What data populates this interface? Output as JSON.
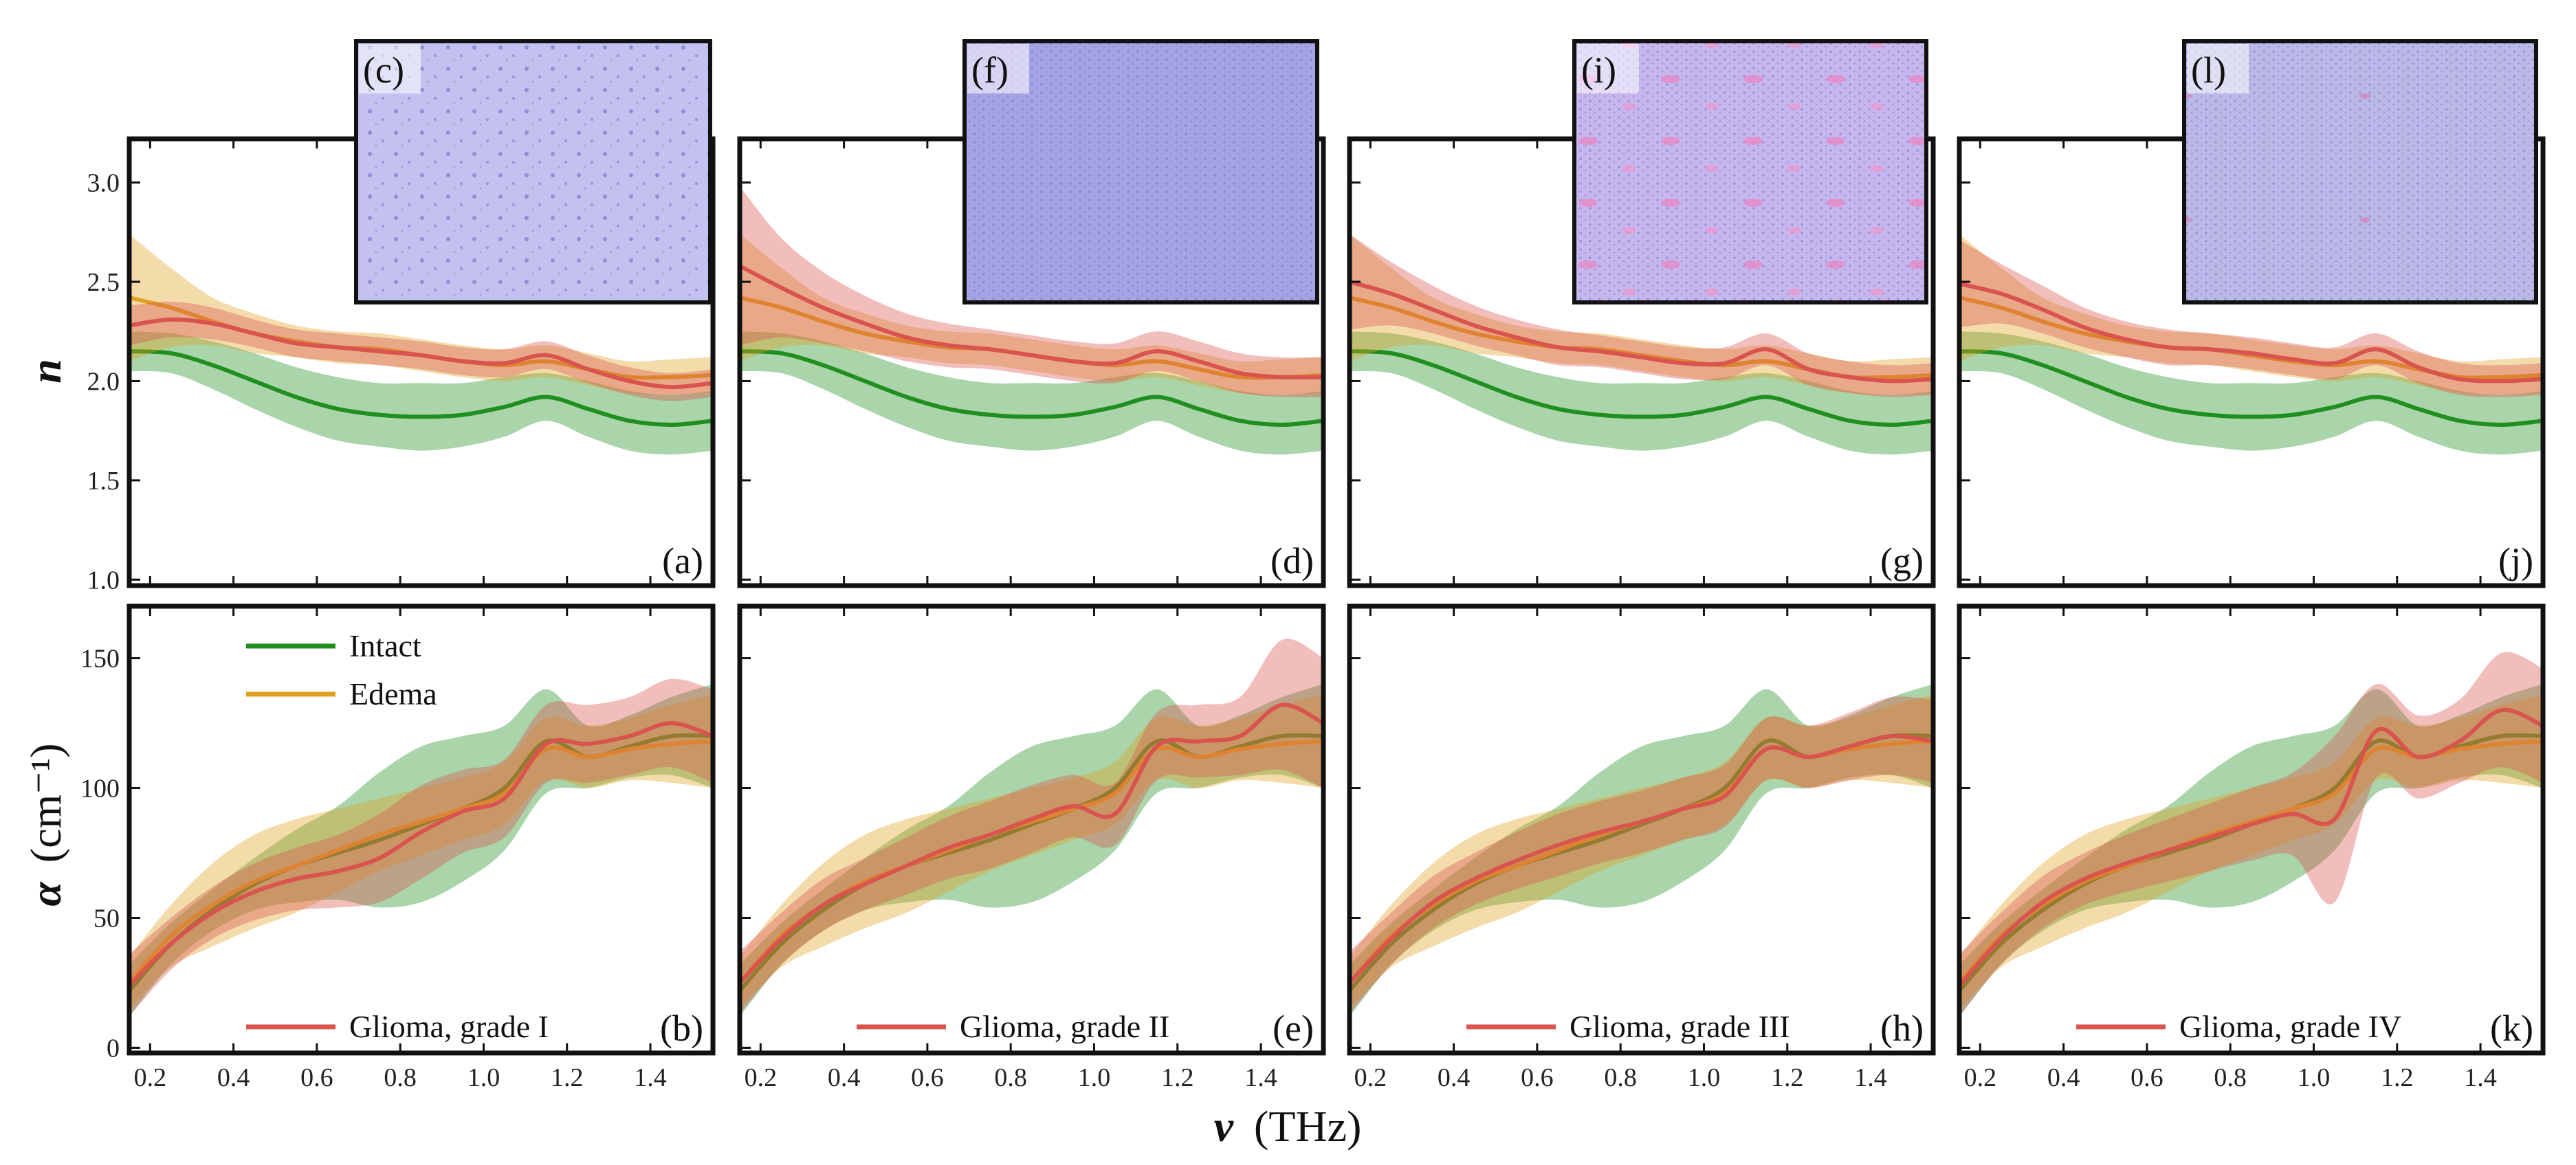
{
  "colors": {
    "intact": "#1f8f1f",
    "edema": "#e0a020",
    "glioma": "#d9534f",
    "frame": "#111111",
    "image_bg": "#b6b4ea"
  },
  "axes": {
    "x_label_symbol": "ν",
    "x_label_unit": "(THz)",
    "n_label": "n",
    "alpha_label_symbol": "α",
    "alpha_label_unit": "(cm⁻¹)"
  },
  "legend": {
    "intact": "Intact",
    "edema": "Edema"
  },
  "panels": [
    {
      "n_tag": "(a)",
      "alpha_tag": "(b)",
      "image_tag": "(c)",
      "glioma_label": "Glioma, grade I"
    },
    {
      "n_tag": "(d)",
      "alpha_tag": "(e)",
      "image_tag": "(f)",
      "glioma_label": "Glioma, grade II"
    },
    {
      "n_tag": "(g)",
      "alpha_tag": "(h)",
      "image_tag": "(i)",
      "glioma_label": "Glioma, grade III"
    },
    {
      "n_tag": "(j)",
      "alpha_tag": "(k)",
      "image_tag": "(l)",
      "glioma_label": "Glioma, grade IV"
    }
  ],
  "chart_data": [
    {
      "type": "line",
      "quantity": "refractive index n",
      "ylabel": "n",
      "xlabel": "ν (THz)",
      "xlim": [
        0.15,
        1.55
      ],
      "ylim": [
        0.97,
        3.22
      ],
      "xticks": [
        0.2,
        0.4,
        0.6,
        0.8,
        1.0,
        1.2,
        1.4
      ],
      "yticks": [
        1.0,
        1.5,
        2.0,
        2.5,
        3.0
      ],
      "x": [
        0.15,
        0.25,
        0.35,
        0.45,
        0.55,
        0.65,
        0.75,
        0.85,
        0.95,
        1.05,
        1.15,
        1.25,
        1.35,
        1.45,
        1.55
      ],
      "intact": {
        "mean": [
          2.15,
          2.14,
          2.08,
          2.0,
          1.92,
          1.86,
          1.83,
          1.82,
          1.83,
          1.87,
          1.92,
          1.86,
          1.8,
          1.78,
          1.8
        ],
        "band": [
          0.1,
          0.1,
          0.12,
          0.14,
          0.15,
          0.16,
          0.16,
          0.17,
          0.16,
          0.15,
          0.12,
          0.14,
          0.15,
          0.15,
          0.15
        ]
      },
      "edema": {
        "mean": [
          2.42,
          2.37,
          2.3,
          2.24,
          2.2,
          2.17,
          2.16,
          2.13,
          2.1,
          2.08,
          2.1,
          2.06,
          2.02,
          2.02,
          2.03
        ],
        "band": [
          0.32,
          0.2,
          0.12,
          0.1,
          0.08,
          0.08,
          0.08,
          0.08,
          0.08,
          0.08,
          0.08,
          0.08,
          0.08,
          0.09,
          0.09
        ]
      },
      "glioma": [
        {
          "mean": [
            2.28,
            2.31,
            2.29,
            2.24,
            2.19,
            2.17,
            2.15,
            2.13,
            2.1,
            2.09,
            2.13,
            2.06,
            2.0,
            1.97,
            1.99
          ],
          "band": [
            0.1,
            0.09,
            0.08,
            0.07,
            0.07,
            0.07,
            0.07,
            0.07,
            0.07,
            0.07,
            0.07,
            0.07,
            0.07,
            0.07,
            0.07
          ]
        },
        {
          "mean": [
            2.58,
            2.47,
            2.37,
            2.29,
            2.22,
            2.18,
            2.16,
            2.13,
            2.1,
            2.09,
            2.15,
            2.1,
            2.04,
            2.02,
            2.02
          ],
          "band": [
            0.4,
            0.25,
            0.18,
            0.14,
            0.12,
            0.11,
            0.1,
            0.1,
            0.1,
            0.1,
            0.1,
            0.1,
            0.1,
            0.1,
            0.1
          ]
        },
        {
          "mean": [
            2.5,
            2.44,
            2.36,
            2.28,
            2.22,
            2.17,
            2.15,
            2.12,
            2.09,
            2.09,
            2.16,
            2.06,
            2.02,
            2.0,
            2.01
          ],
          "band": [
            0.24,
            0.16,
            0.12,
            0.1,
            0.09,
            0.09,
            0.08,
            0.08,
            0.08,
            0.08,
            0.08,
            0.08,
            0.08,
            0.08,
            0.08
          ]
        },
        {
          "mean": [
            2.49,
            2.44,
            2.36,
            2.27,
            2.21,
            2.17,
            2.16,
            2.14,
            2.11,
            2.09,
            2.16,
            2.07,
            2.01,
            2.0,
            2.01
          ],
          "band": [
            0.22,
            0.15,
            0.12,
            0.1,
            0.09,
            0.09,
            0.08,
            0.08,
            0.08,
            0.08,
            0.08,
            0.08,
            0.08,
            0.08,
            0.08
          ]
        }
      ]
    },
    {
      "type": "line",
      "quantity": "absorption coefficient α",
      "ylabel": "α (cm⁻¹)",
      "xlabel": "ν (THz)",
      "xlim": [
        0.15,
        1.55
      ],
      "ylim": [
        -2,
        170
      ],
      "xticks": [
        0.2,
        0.4,
        0.6,
        0.8,
        1.0,
        1.2,
        1.4
      ],
      "yticks": [
        0,
        50,
        100,
        150
      ],
      "x": [
        0.15,
        0.25,
        0.35,
        0.45,
        0.55,
        0.65,
        0.75,
        0.85,
        0.95,
        1.05,
        1.15,
        1.25,
        1.35,
        1.45,
        1.55
      ],
      "intact": {
        "mean": [
          22,
          40,
          53,
          63,
          70,
          75,
          80,
          86,
          92,
          100,
          118,
          112,
          116,
          120,
          120
        ],
        "band": [
          10,
          8,
          8,
          10,
          14,
          18,
          26,
          30,
          28,
          24,
          20,
          12,
          12,
          15,
          20
        ]
      },
      "edema": {
        "mean": [
          25,
          43,
          55,
          64,
          70,
          76,
          82,
          87,
          92,
          98,
          115,
          112,
          115,
          117,
          118
        ],
        "band": [
          10,
          12,
          16,
          18,
          18,
          16,
          14,
          13,
          12,
          12,
          12,
          12,
          12,
          15,
          18
        ]
      },
      "glioma": [
        {
          "mean": [
            24,
            40,
            52,
            60,
            65,
            68,
            73,
            83,
            91,
            96,
            117,
            117,
            120,
            125,
            120
          ],
          "band": [
            12,
            10,
            10,
            11,
            12,
            14,
            17,
            18,
            16,
            15,
            15,
            15,
            15,
            17,
            18
          ]
        },
        {
          "mean": [
            25,
            42,
            55,
            63,
            70,
            77,
            82,
            88,
            93,
            90,
            116,
            118,
            120,
            132,
            125
          ],
          "band": [
            12,
            10,
            10,
            10,
            11,
            12,
            13,
            13,
            12,
            12,
            13,
            14,
            15,
            25,
            25
          ]
        },
        {
          "mean": [
            25,
            42,
            56,
            65,
            72,
            78,
            83,
            87,
            92,
            97,
            115,
            112,
            116,
            120,
            118
          ],
          "band": [
            12,
            10,
            10,
            10,
            11,
            12,
            12,
            12,
            12,
            12,
            12,
            12,
            13,
            15,
            16
          ]
        },
        {
          "mean": [
            24,
            42,
            56,
            65,
            71,
            76,
            81,
            86,
            90,
            88,
            122,
            112,
            118,
            130,
            124
          ],
          "band": [
            12,
            10,
            10,
            10,
            11,
            12,
            13,
            14,
            16,
            32,
            18,
            16,
            16,
            22,
            22
          ]
        }
      ]
    }
  ]
}
